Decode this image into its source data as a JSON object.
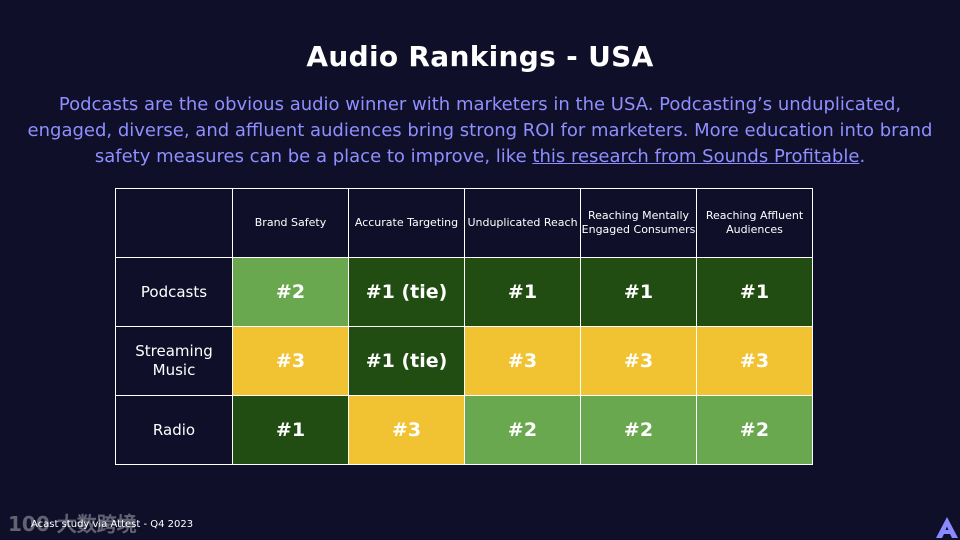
{
  "slide": {
    "title": "Audio Rankings - USA",
    "intro_text": "Podcasts are the obvious audio winner with marketers in the USA.  Podcasting’s unduplicated, engaged, diverse, and affluent audiences bring strong ROI for marketers.  More education into brand safety measures can be a place to improve, like ",
    "intro_link": "this research from Sounds Profitable",
    "intro_end": ".",
    "footer": "Acast study via Attest - Q4 2023",
    "watermark": "100 大数跨境"
  },
  "colors": {
    "background": "#0f0f29",
    "accent_text": "#8f8fff",
    "rank1": "#224d12",
    "rank2": "#6aa84f",
    "rank3": "#f1c232",
    "logo": "#8a8aff"
  },
  "icons": {
    "logo": "acast-logo-icon"
  },
  "table": {
    "columns": [
      "Brand Safety",
      "Accurate Targeting",
      "Unduplicated Reach",
      "Reaching Mentally Engaged Consumers",
      "Reaching Affluent Audiences"
    ],
    "rows": [
      {
        "label": "Podcasts",
        "cells": [
          "#2",
          "#1 (tie)",
          "#1",
          "#1",
          "#1"
        ]
      },
      {
        "label": "Streaming Music",
        "cells": [
          "#3",
          "#1 (tie)",
          "#3",
          "#3",
          "#3"
        ]
      },
      {
        "label": "Radio",
        "cells": [
          "#1",
          "#3",
          "#2",
          "#2",
          "#2"
        ]
      }
    ]
  }
}
